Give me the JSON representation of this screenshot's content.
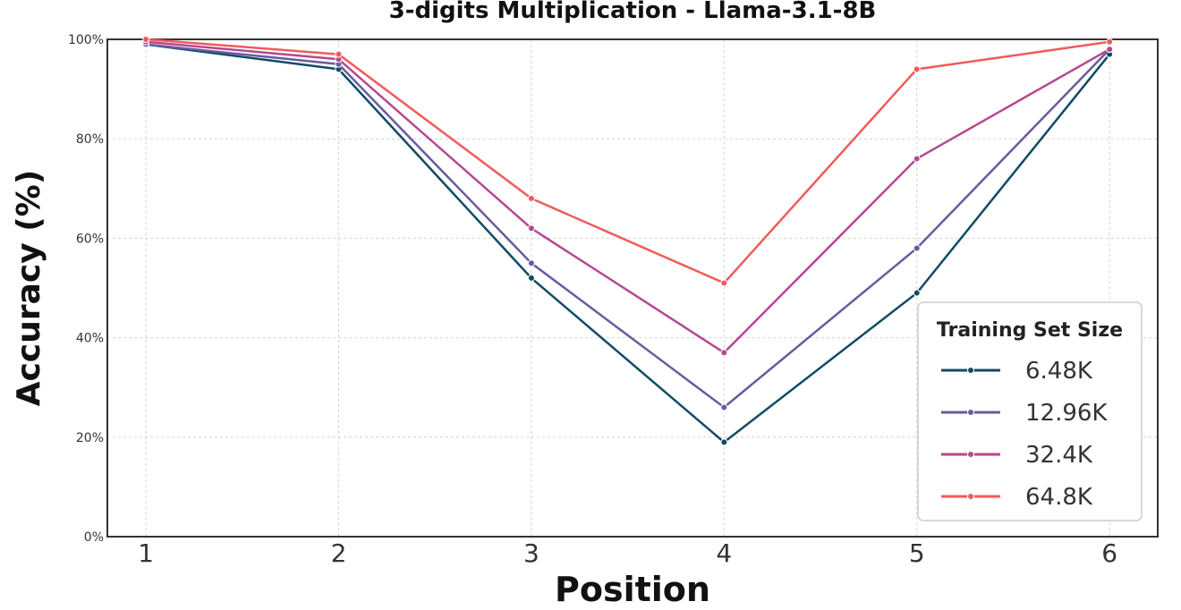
{
  "chart_data": {
    "type": "line",
    "title": "3-digits Multiplication - Llama-3.1-8B",
    "xlabel": "Position",
    "ylabel": "Accuracy (%)",
    "x": [
      1,
      2,
      3,
      4,
      5,
      6
    ],
    "xticks": [
      "1",
      "2",
      "3",
      "4",
      "5",
      "6"
    ],
    "xlim": [
      0.8,
      6.25
    ],
    "ylim": [
      0,
      100
    ],
    "yticks": [
      "0%",
      "20%",
      "40%",
      "60%",
      "80%",
      "100%"
    ],
    "grid": true,
    "legend": {
      "title": "Training Set Size",
      "placement": "lower-right"
    },
    "series": [
      {
        "name": "6.48K",
        "color": "#0f4c64",
        "values": [
          99,
          94,
          52,
          19,
          49,
          97
        ]
      },
      {
        "name": "12.96K",
        "color": "#6a5a9e",
        "values": [
          99,
          95,
          55,
          26,
          58,
          98
        ]
      },
      {
        "name": "32.4K",
        "color": "#b5488f",
        "values": [
          99.5,
          96,
          62,
          37,
          76,
          98
        ]
      },
      {
        "name": "64.8K",
        "color": "#f25a5a",
        "values": [
          100,
          97,
          68,
          51,
          94,
          99.5
        ]
      }
    ]
  }
}
